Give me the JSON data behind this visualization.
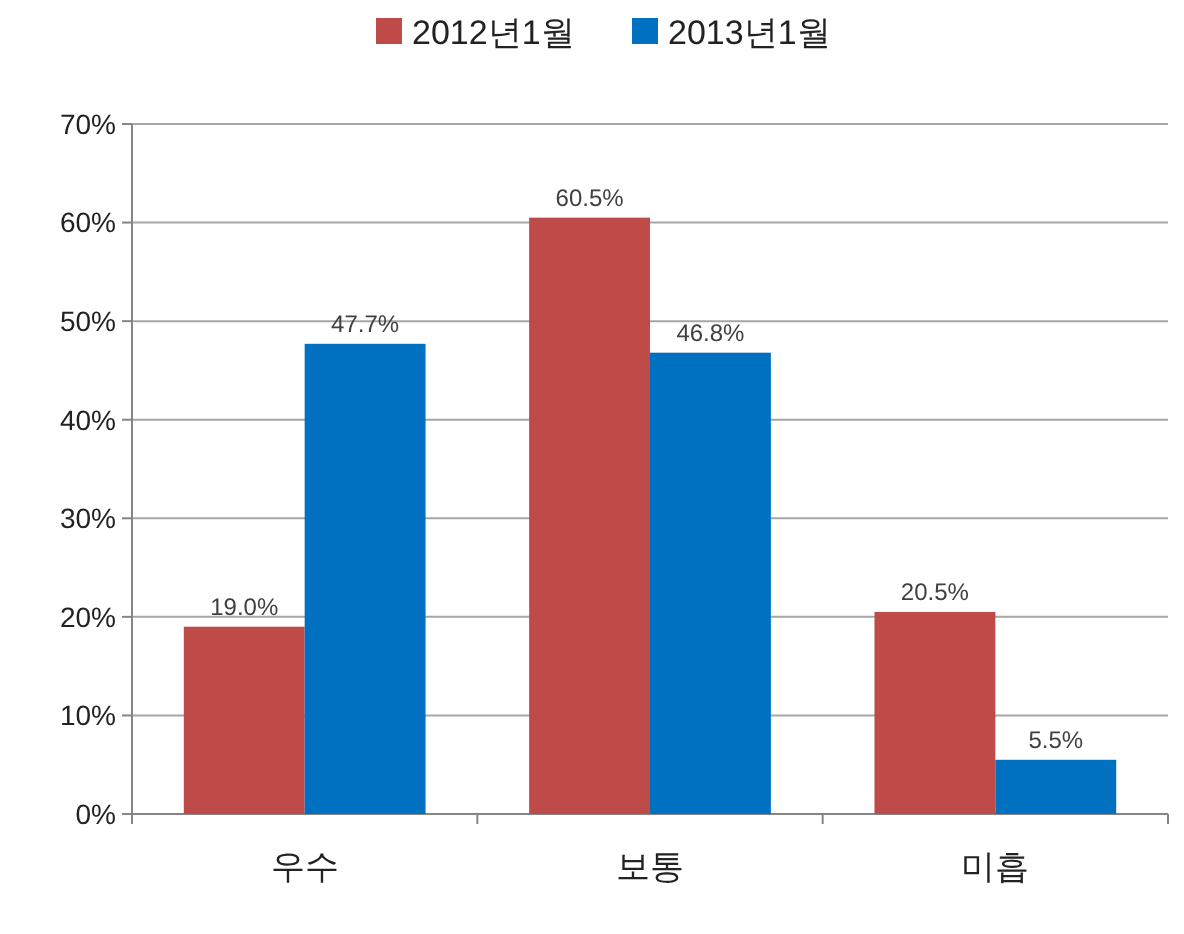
{
  "chart_data": {
    "type": "bar",
    "categories": [
      "우수",
      "보통",
      "미흡"
    ],
    "series": [
      {
        "name": "2012년1월",
        "color": "#be4b48",
        "values": [
          19.0,
          60.5,
          20.5
        ],
        "value_labels": [
          "19.0%",
          "60.5%",
          "20.5%"
        ]
      },
      {
        "name": "2013년1월",
        "color": "#0070c0",
        "values": [
          47.7,
          46.8,
          5.5
        ],
        "value_labels": [
          "47.7%",
          "46.8%",
          "5.5%"
        ]
      }
    ],
    "ylim": [
      0,
      70
    ],
    "yticks": [
      {
        "value": 0,
        "label": "0%"
      },
      {
        "value": 10,
        "label": "10%"
      },
      {
        "value": 20,
        "label": "20%"
      },
      {
        "value": 30,
        "label": "30%"
      },
      {
        "value": 40,
        "label": "40%"
      },
      {
        "value": 50,
        "label": "50%"
      },
      {
        "value": 60,
        "label": "60%"
      },
      {
        "value": 70,
        "label": "70%"
      }
    ],
    "grid": "y",
    "legend": "top"
  }
}
